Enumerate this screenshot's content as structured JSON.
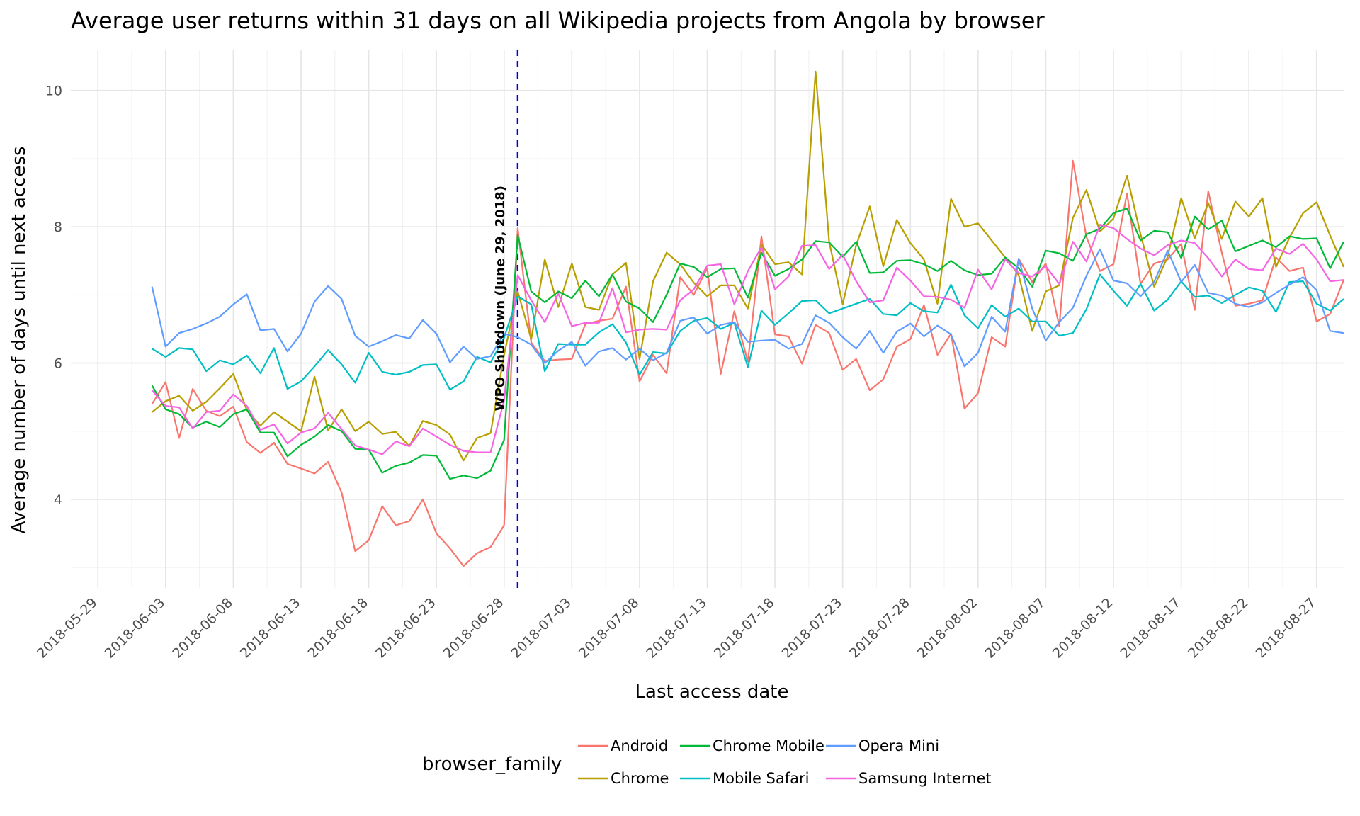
{
  "chart_data": {
    "type": "line",
    "title": "Average user returns within 31 days on all Wikipedia projects from Angola by browser",
    "xlabel": "Last access date",
    "ylabel": "Average number of days until next access",
    "start_date": "2018-06-02",
    "xlim": [
      "2018-05-27",
      "2018-08-29"
    ],
    "ylim": [
      2.7,
      10.6
    ],
    "y_ticks": [
      4,
      6,
      8,
      10
    ],
    "x_ticks": [
      "2018-05-29",
      "2018-06-03",
      "2018-06-08",
      "2018-06-13",
      "2018-06-18",
      "2018-06-23",
      "2018-06-28",
      "2018-07-03",
      "2018-07-08",
      "2018-07-13",
      "2018-07-18",
      "2018-07-23",
      "2018-07-28",
      "2018-08-02",
      "2018-08-07",
      "2018-08-12",
      "2018-08-17",
      "2018-08-22",
      "2018-08-27"
    ],
    "grid": true,
    "legend_title": "browser_family",
    "legend_position": "bottom",
    "annotation": {
      "label": "WPO Shutdown (June 29, 2018)",
      "date": "2018-06-29",
      "color": "#0000dd"
    },
    "series": [
      {
        "name": "Android",
        "color": "#F8766D",
        "values": [
          5.4,
          5.72,
          4.9,
          5.62,
          5.3,
          5.22,
          5.36,
          4.84,
          4.68,
          4.83,
          4.52,
          4.45,
          4.38,
          4.55,
          4.1,
          3.24,
          3.4,
          3.9,
          3.62,
          3.68,
          4.0,
          3.5,
          3.28,
          3.02,
          3.21,
          3.3,
          3.62,
          7.98,
          6.3,
          6.03,
          6.05,
          6.06,
          6.57,
          6.62,
          6.65,
          7.12,
          5.73,
          6.12,
          5.85,
          7.26,
          7.0,
          7.39,
          5.84,
          6.76,
          6.02,
          7.86,
          6.42,
          6.39,
          5.99,
          6.56,
          6.44,
          5.9,
          6.06,
          5.6,
          5.76,
          6.24,
          6.35,
          6.85,
          6.12,
          6.43,
          5.33,
          5.56,
          6.38,
          6.24,
          7.53,
          7.19,
          7.46,
          6.54,
          8.97,
          7.85,
          7.35,
          7.45,
          8.49,
          7.16,
          7.46,
          7.52,
          7.75,
          6.78,
          8.52,
          7.62,
          6.84,
          6.87,
          6.92,
          7.55,
          7.35,
          7.4,
          6.61,
          6.72,
          7.22
        ]
      },
      {
        "name": "Chrome",
        "color": "#B79F00",
        "values": [
          5.28,
          5.44,
          5.52,
          5.3,
          5.43,
          5.63,
          5.84,
          5.31,
          5.08,
          5.28,
          5.14,
          5.0,
          5.8,
          5.01,
          5.32,
          5.0,
          5.14,
          4.96,
          4.99,
          4.78,
          5.15,
          5.09,
          4.95,
          4.57,
          4.9,
          4.97,
          6.12,
          7.05,
          6.35,
          7.52,
          6.82,
          7.46,
          6.82,
          6.78,
          7.3,
          7.47,
          6.06,
          7.2,
          7.62,
          7.45,
          7.18,
          6.98,
          7.14,
          7.14,
          6.8,
          7.74,
          7.45,
          7.48,
          7.3,
          10.28,
          7.78,
          6.86,
          7.73,
          8.3,
          7.42,
          8.1,
          7.76,
          7.52,
          6.87,
          8.41,
          8.0,
          8.05,
          7.8,
          7.55,
          7.29,
          6.47,
          7.05,
          7.14,
          8.13,
          8.54,
          7.93,
          8.12,
          8.75,
          7.89,
          7.12,
          7.56,
          8.42,
          7.83,
          8.35,
          7.82,
          8.37,
          8.15,
          8.42,
          7.41,
          7.84,
          8.2,
          8.36,
          7.87,
          7.41
        ]
      },
      {
        "name": "Chrome Mobile",
        "color": "#00BA38",
        "values": [
          5.67,
          5.32,
          5.25,
          5.05,
          5.14,
          5.06,
          5.25,
          5.32,
          4.98,
          4.98,
          4.63,
          4.8,
          4.92,
          5.09,
          5.0,
          4.74,
          4.73,
          4.39,
          4.49,
          4.54,
          4.65,
          4.64,
          4.3,
          4.35,
          4.31,
          4.42,
          4.87,
          7.88,
          7.05,
          6.89,
          7.05,
          6.95,
          7.21,
          6.98,
          7.3,
          6.9,
          6.8,
          6.6,
          7.0,
          7.46,
          7.41,
          7.26,
          7.38,
          7.39,
          6.96,
          7.62,
          7.28,
          7.38,
          7.52,
          7.79,
          7.77,
          7.56,
          7.78,
          7.32,
          7.33,
          7.5,
          7.51,
          7.45,
          7.35,
          7.5,
          7.36,
          7.29,
          7.31,
          7.55,
          7.39,
          7.12,
          7.65,
          7.61,
          7.5,
          7.89,
          7.97,
          8.2,
          8.27,
          7.8,
          7.94,
          7.92,
          7.54,
          8.15,
          7.96,
          8.09,
          7.64,
          7.72,
          7.8,
          7.7,
          7.86,
          7.82,
          7.83,
          7.39,
          7.78
        ]
      },
      {
        "name": "Mobile Safari",
        "color": "#00BFC4",
        "values": [
          6.21,
          6.09,
          6.22,
          6.2,
          5.88,
          6.04,
          5.98,
          6.11,
          5.85,
          6.22,
          5.62,
          5.73,
          5.95,
          6.19,
          5.98,
          5.71,
          6.15,
          5.87,
          5.83,
          5.87,
          5.97,
          5.98,
          5.61,
          5.73,
          6.09,
          6.01,
          6.37,
          6.98,
          6.86,
          5.88,
          6.28,
          6.27,
          6.27,
          6.45,
          6.57,
          6.3,
          5.83,
          6.16,
          6.14,
          6.47,
          6.62,
          6.66,
          6.5,
          6.59,
          5.94,
          6.77,
          6.56,
          6.73,
          6.91,
          6.92,
          6.73,
          6.8,
          6.87,
          6.94,
          6.72,
          6.7,
          6.88,
          6.76,
          6.74,
          7.15,
          6.7,
          6.51,
          6.85,
          6.68,
          6.8,
          6.61,
          6.61,
          6.4,
          6.44,
          6.79,
          7.3,
          7.06,
          6.84,
          7.16,
          6.77,
          6.93,
          7.2,
          6.97,
          6.99,
          6.88,
          7.0,
          7.11,
          7.06,
          6.75,
          7.19,
          7.2,
          6.87,
          6.77,
          6.94
        ]
      },
      {
        "name": "Opera Mini",
        "color": "#619CFF",
        "values": [
          7.12,
          6.24,
          6.44,
          6.5,
          6.58,
          6.68,
          6.86,
          7.01,
          6.48,
          6.5,
          6.17,
          6.43,
          6.9,
          7.13,
          6.94,
          6.4,
          6.24,
          6.32,
          6.41,
          6.36,
          6.63,
          6.43,
          6.01,
          6.24,
          6.06,
          6.1,
          6.43,
          6.38,
          6.27,
          6.0,
          6.18,
          6.31,
          5.96,
          6.17,
          6.22,
          6.05,
          6.21,
          6.04,
          6.15,
          6.62,
          6.67,
          6.43,
          6.56,
          6.6,
          6.31,
          6.33,
          6.34,
          6.21,
          6.28,
          6.7,
          6.59,
          6.38,
          6.21,
          6.47,
          6.15,
          6.46,
          6.58,
          6.39,
          6.55,
          6.42,
          5.95,
          6.15,
          6.68,
          6.46,
          7.53,
          6.8,
          6.33,
          6.6,
          6.81,
          7.28,
          7.67,
          7.21,
          7.17,
          6.98,
          7.19,
          7.65,
          7.19,
          7.44,
          7.03,
          6.99,
          6.87,
          6.82,
          6.89,
          7.03,
          7.15,
          7.26,
          7.07,
          6.47,
          6.44
        ]
      },
      {
        "name": "Samsung Internet",
        "color": "#F564E3",
        "values": [
          5.6,
          5.37,
          5.35,
          5.04,
          5.28,
          5.3,
          5.54,
          5.37,
          5.02,
          5.1,
          4.82,
          4.98,
          5.04,
          5.27,
          5.03,
          4.79,
          4.73,
          4.66,
          4.85,
          4.78,
          5.04,
          4.92,
          4.8,
          4.71,
          4.69,
          4.69,
          5.45,
          7.29,
          6.92,
          6.6,
          7.02,
          6.54,
          6.59,
          6.59,
          7.1,
          6.45,
          6.49,
          6.5,
          6.49,
          6.92,
          7.08,
          7.43,
          7.45,
          6.86,
          7.35,
          7.7,
          7.08,
          7.27,
          7.72,
          7.73,
          7.38,
          7.59,
          7.2,
          6.89,
          6.92,
          7.4,
          7.21,
          6.98,
          6.97,
          6.93,
          6.81,
          7.37,
          7.08,
          7.52,
          7.32,
          7.27,
          7.42,
          7.16,
          7.78,
          7.49,
          8.03,
          7.98,
          7.82,
          7.68,
          7.58,
          7.73,
          7.8,
          7.76,
          7.54,
          7.27,
          7.52,
          7.38,
          7.36,
          7.68,
          7.6,
          7.75,
          7.52,
          7.2,
          7.22
        ]
      }
    ]
  }
}
